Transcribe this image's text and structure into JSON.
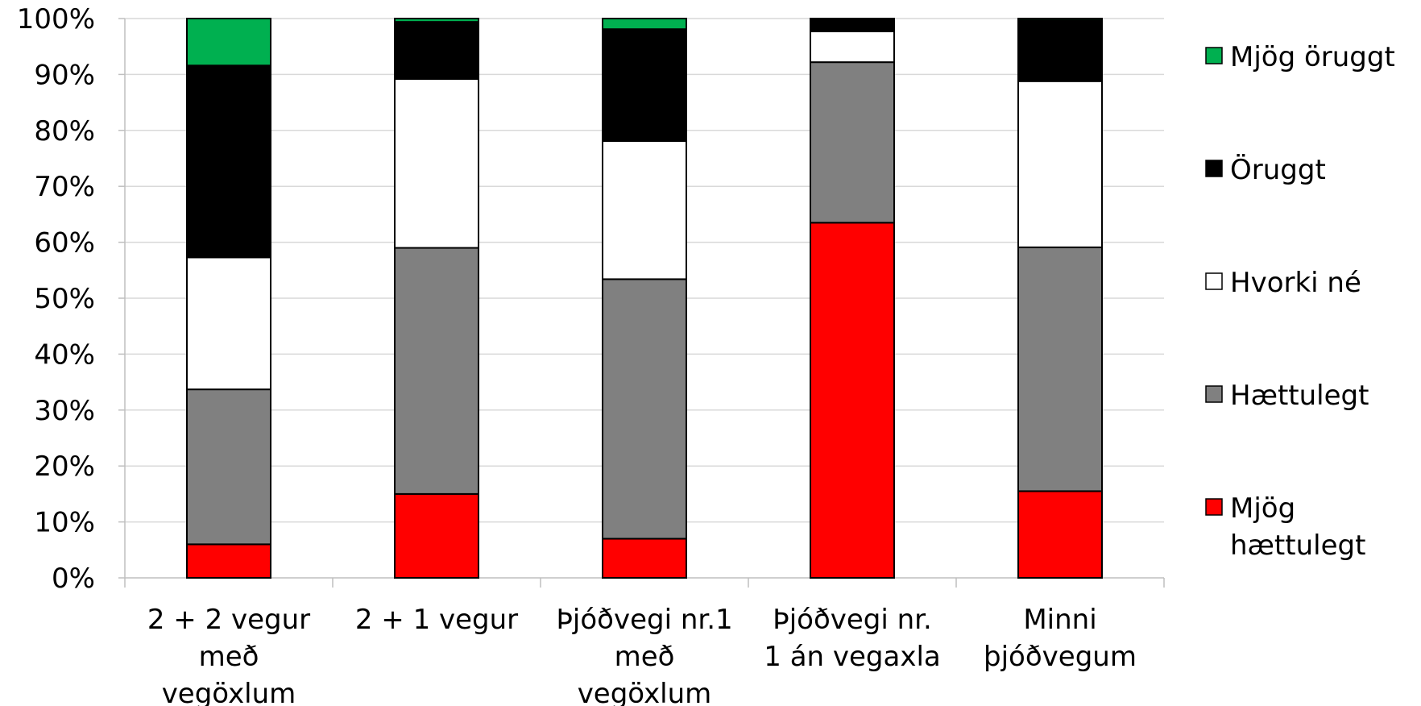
{
  "chart_data": {
    "type": "bar",
    "stacked": true,
    "percent": true,
    "categories": [
      [
        "2 + 2 vegur",
        "með",
        "vegöxlum"
      ],
      [
        "2 + 1 vegur"
      ],
      [
        "Þjóðvegi nr.1",
        "með",
        "vegöxlum"
      ],
      [
        "Þjóðvegi nr.",
        "1 án vegaxla"
      ],
      [
        "Minni",
        "þjóðvegum"
      ]
    ],
    "series": [
      {
        "name": "Mjög hættulegt",
        "legend_lines": [
          "Mjög",
          "hættulegt"
        ],
        "color": "#ff0000",
        "values": [
          6,
          15,
          7,
          63.5,
          15.5
        ]
      },
      {
        "name": "Hættulegt",
        "legend_lines": [
          "Hættulegt"
        ],
        "color": "#808080",
        "values": [
          27.7,
          44,
          46.4,
          28.7,
          43.6
        ]
      },
      {
        "name": "Hvorki né",
        "legend_lines": [
          "Hvorki né"
        ],
        "color": "#ffffff",
        "values": [
          23.6,
          30.2,
          24.7,
          5.5,
          29.7
        ]
      },
      {
        "name": "Öruggt",
        "legend_lines": [
          "Öruggt"
        ],
        "color": "#000000",
        "values": [
          34.3,
          10.2,
          20,
          2.3,
          10.9
        ]
      },
      {
        "name": "Mjög öruggt",
        "legend_lines": [
          "Mjög öruggt"
        ],
        "color": "#00b050",
        "values": [
          8.4,
          0.6,
          1.9,
          0,
          0.3
        ]
      }
    ],
    "y_ticks": [
      "0%",
      "10%",
      "20%",
      "30%",
      "40%",
      "50%",
      "60%",
      "70%",
      "80%",
      "90%",
      "100%"
    ],
    "ylim": [
      0,
      100
    ],
    "grid": true,
    "legend": "right",
    "title": "",
    "xlabel": "",
    "ylabel": ""
  }
}
